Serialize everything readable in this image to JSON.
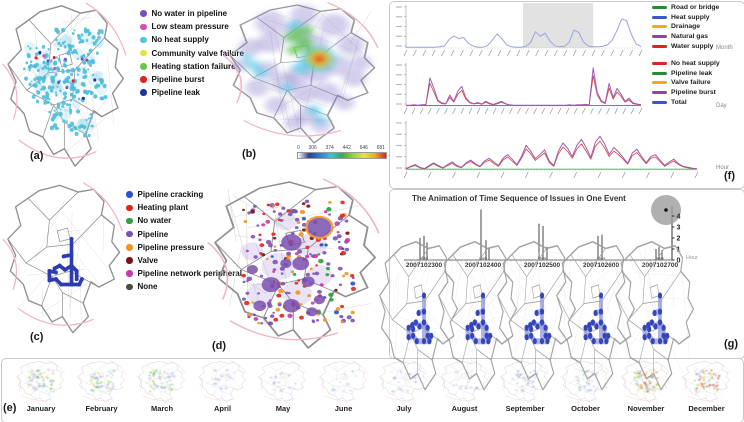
{
  "figure": {
    "panel_labels": {
      "a": "(a)",
      "b": "(b)",
      "c": "(c)",
      "d": "(d)",
      "e": "(e)",
      "f": "(f)",
      "g": "(g)"
    }
  },
  "legend_a": {
    "items": [
      {
        "label": "No water in pipeline",
        "color": "#7a52b5"
      },
      {
        "label": "Low steam pressure",
        "color": "#d84fae"
      },
      {
        "label": "No heat supply",
        "color": "#54c3e0"
      },
      {
        "label": "Community valve failure",
        "color": "#e8e23c"
      },
      {
        "label": "Heating station failure",
        "color": "#6cc24a"
      },
      {
        "label": "Pipeline burst",
        "color": "#e2231a"
      },
      {
        "label": "Pipeline leak",
        "color": "#23339e"
      }
    ]
  },
  "legend_cd": {
    "items": [
      {
        "label": "Pipeline cracking",
        "color": "#2b50c8"
      },
      {
        "label": "Heating plant",
        "color": "#e2231a"
      },
      {
        "label": "No water",
        "color": "#2f9e3f"
      },
      {
        "label": "Pipeline",
        "color": "#7a52b5"
      },
      {
        "label": "Pipeline pressure",
        "color": "#f59120"
      },
      {
        "label": "Valve",
        "color": "#7a1010"
      },
      {
        "label": "Pipeline network peripheral",
        "color": "#c438b0"
      },
      {
        "label": "None",
        "color": "#4a4a3a"
      }
    ]
  },
  "colorbar": {
    "ticks": [
      "0",
      "306",
      "374",
      "442",
      "646",
      "681"
    ],
    "gradient": [
      "#ffffff",
      "#2b3f9e",
      "#2b7fd8",
      "#33c2e0",
      "#2fae4f",
      "#8fd63c",
      "#e8e23c",
      "#f5a623",
      "#e2231a"
    ]
  },
  "panel_e": {
    "months": [
      {
        "name": "January",
        "level": "high"
      },
      {
        "name": "February",
        "level": "high"
      },
      {
        "name": "March",
        "level": "high",
        "accent": "orange"
      },
      {
        "name": "April",
        "level": "low"
      },
      {
        "name": "May",
        "level": "low"
      },
      {
        "name": "June",
        "level": "low"
      },
      {
        "name": "July",
        "level": "low"
      },
      {
        "name": "August",
        "level": "low"
      },
      {
        "name": "September",
        "level": "medium"
      },
      {
        "name": "October",
        "level": "medium"
      },
      {
        "name": "November",
        "level": "extreme"
      },
      {
        "name": "December",
        "level": "extreme"
      }
    ]
  },
  "panel_f": {
    "charts": [
      {
        "x_axis": "Month"
      },
      {
        "x_axis": "Day"
      },
      {
        "x_axis": "Hour"
      }
    ],
    "legend_top": {
      "items": [
        {
          "label": "Road or bridge",
          "color": "#1f8f2f"
        },
        {
          "label": "Heat supply",
          "color": "#3c55c8"
        },
        {
          "label": "Drainage",
          "color": "#f5a623"
        },
        {
          "label": "Natural gas",
          "color": "#8e44ad"
        },
        {
          "label": "Water supply",
          "color": "#e2231a"
        }
      ]
    },
    "legend_bottom": {
      "items": [
        {
          "label": "No heat supply",
          "color": "#e2231a"
        },
        {
          "label": "Pipeline leak",
          "color": "#1f8f2f"
        },
        {
          "label": "Valve failure",
          "color": "#f5a623"
        },
        {
          "label": "Pipeline burst",
          "color": "#8e44ad"
        },
        {
          "label": "Total",
          "color": "#3c55c8"
        }
      ]
    }
  },
  "panel_g": {
    "title": "The Animation of Time Sequence of Issues in One Event",
    "timestamps": [
      "2007102300",
      "2007102400",
      "2007102500",
      "2007102600",
      "2007102700"
    ],
    "y_ticks": [
      "0",
      "1",
      "2",
      "3",
      "4"
    ],
    "x_axis": "Hour"
  },
  "chart_data": [
    {
      "type": "line",
      "panel": "f-top",
      "x_axis": "Month",
      "legend": [
        "Road or bridge",
        "Heat supply",
        "Drainage",
        "Natural gas",
        "Water supply"
      ],
      "highlight_band": [
        0.5,
        0.8
      ],
      "series": [
        {
          "name": "Heat supply",
          "color": "#9aa3e0",
          "values": [
            2,
            2,
            2,
            2,
            2,
            2,
            2,
            3,
            5,
            22,
            31,
            24,
            27,
            12,
            5,
            2,
            2,
            6,
            20,
            36,
            24,
            8,
            3,
            2,
            2,
            4,
            14,
            42,
            30,
            38,
            18,
            6,
            3,
            4,
            14,
            46,
            40,
            16,
            5,
            3,
            3,
            4,
            8,
            20,
            45,
            75,
            70,
            35,
            10,
            4
          ]
        }
      ]
    },
    {
      "type": "line",
      "panel": "f-middle",
      "x_axis": "Day",
      "series": [
        {
          "name": "Pipeline burst",
          "color": "#a05bb5",
          "values": [
            2,
            2,
            3,
            2,
            3,
            4,
            72,
            45,
            15,
            8,
            6,
            28,
            12,
            38,
            50,
            22,
            10,
            6,
            9,
            5,
            12,
            7,
            4,
            8,
            12,
            6,
            3,
            2,
            2,
            2,
            2,
            2,
            2,
            2,
            2,
            2,
            2,
            2,
            2,
            2,
            2,
            3,
            2,
            3,
            3,
            4,
            3,
            98,
            35,
            14,
            8,
            58,
            22,
            45,
            30,
            12,
            20,
            8,
            5,
            3
          ]
        },
        {
          "name": "No heat supply",
          "color": "#d04040",
          "values": [
            1,
            1,
            2,
            1,
            2,
            3,
            58,
            36,
            12,
            6,
            5,
            22,
            10,
            30,
            40,
            18,
            8,
            5,
            7,
            4,
            10,
            5,
            3,
            6,
            10,
            5,
            2,
            1,
            1,
            1,
            1,
            1,
            1,
            1,
            1,
            1,
            1,
            1,
            1,
            1,
            1,
            2,
            1,
            2,
            2,
            3,
            2,
            78,
            28,
            11,
            6,
            46,
            18,
            36,
            24,
            10,
            16,
            6,
            4,
            2
          ]
        },
        {
          "name": "Pipeline leak",
          "color": "#2f9e3f",
          "flat": 1.5
        },
        {
          "name": "Valve failure",
          "color": "#f5a623",
          "flat": 1
        }
      ]
    },
    {
      "type": "line",
      "panel": "f-bottom",
      "x_axis": "Hour",
      "series": [
        {
          "name": "Total",
          "color": "#a05bb5",
          "values": [
            3,
            8,
            12,
            6,
            3,
            10,
            16,
            10,
            5,
            12,
            18,
            10,
            6,
            16,
            22,
            14,
            8,
            20,
            26,
            18,
            10,
            26,
            34,
            24,
            12,
            30,
            55,
            42,
            25,
            35,
            45,
            20,
            10,
            42,
            60,
            48,
            30,
            55,
            68,
            50,
            28,
            62,
            75,
            58,
            35,
            50,
            40,
            28,
            15,
            38,
            46,
            30,
            16,
            30,
            34,
            22,
            10,
            18,
            24,
            14,
            8,
            6,
            4,
            3
          ]
        },
        {
          "name": "No heat supply",
          "color": "#d04040",
          "values": [
            2,
            7,
            10,
            5,
            2,
            8,
            14,
            8,
            4,
            10,
            15,
            8,
            5,
            14,
            19,
            12,
            7,
            17,
            22,
            15,
            8,
            22,
            29,
            20,
            10,
            26,
            47,
            36,
            21,
            30,
            38,
            17,
            8,
            36,
            51,
            41,
            26,
            47,
            58,
            42,
            24,
            53,
            64,
            49,
            30,
            42,
            34,
            24,
            13,
            32,
            39,
            26,
            14,
            26,
            29,
            19,
            8,
            15,
            20,
            12,
            7,
            5,
            3,
            2
          ]
        },
        {
          "name": "Pipeline leak",
          "color": "#2f9e3f",
          "flat": 2
        }
      ]
    },
    {
      "type": "spikes",
      "panel": "g",
      "x_labels": [
        "2007102300",
        "2007102400",
        "2007102500",
        "2007102600",
        "2007102700"
      ],
      "y_ticks": [
        0,
        1,
        2,
        3,
        4
      ],
      "unit": "Hour",
      "groups": [
        [
          [
            -4,
            2
          ],
          [
            0,
            2.2
          ],
          [
            3,
            1.6
          ]
        ],
        [
          [
            -2,
            4.6
          ],
          [
            3,
            1.8
          ],
          [
            6,
            1.1
          ]
        ],
        [
          [
            -3,
            3.3
          ],
          [
            1,
            3.1
          ],
          [
            5,
            1.2
          ]
        ],
        [
          [
            -3,
            2.2
          ],
          [
            1,
            2.3
          ]
        ],
        [
          [
            -4,
            1
          ],
          [
            -1,
            1.2
          ],
          [
            2,
            0.9
          ]
        ]
      ]
    }
  ]
}
